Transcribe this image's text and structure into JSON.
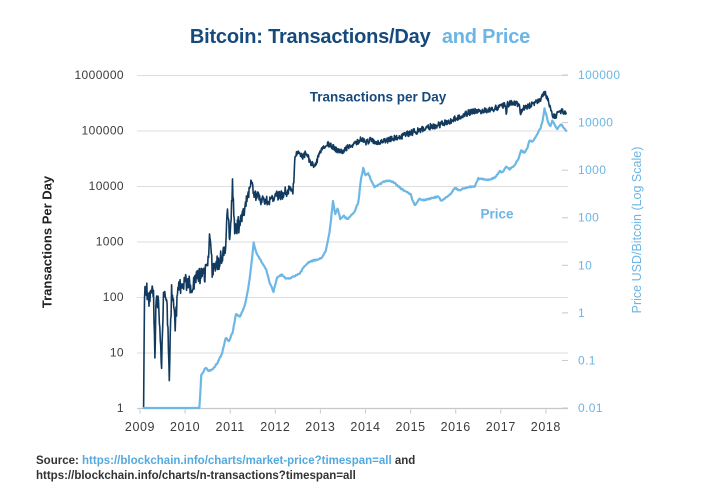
{
  "title": {
    "part1": "Bitcoin: Transactions/Day",
    "part2": "and Price"
  },
  "annotations": {
    "transactions": "Transactions per Day",
    "price": "Price"
  },
  "source": {
    "prefix": "Source:",
    "link1": "https://blockchain.info/charts/market-price?timespan=all",
    "conjunction": "and",
    "line2": "https://blockchain.info/charts/n-transactions?timespan=all"
  },
  "colors": {
    "navy_text": "#174a7c",
    "blue_text": "#6cb5e4",
    "grid": "#dedede",
    "axis": "#c8c8c8",
    "transactions_line": "#123a5e",
    "price_line": "#6db7e6"
  },
  "chart_data": {
    "type": "line",
    "title": "Bitcoin: Transactions/Day and Price",
    "grid": "horizontal-left-decades",
    "legend": "inline-annotations",
    "x_axis": {
      "ticks": [
        2009,
        2010,
        2011,
        2012,
        2013,
        2014,
        2015,
        2016,
        2017,
        2018
      ],
      "range": [
        2008.9,
        2018.55
      ]
    },
    "y_left": {
      "label": "Transactions Per Day",
      "scale": "log",
      "range": [
        1,
        1000000
      ],
      "ticks": [
        1,
        10,
        100,
        1000,
        10000,
        100000,
        1000000
      ]
    },
    "y_right": {
      "label": "Price USD/Bitcoin (Log Scale)",
      "scale": "log",
      "range": [
        0.01,
        100000
      ],
      "ticks": [
        0.01,
        0.1,
        1,
        10,
        100,
        1000,
        10000,
        100000
      ]
    },
    "series": [
      {
        "id": "transactions",
        "name": "Transactions per Day",
        "axis": "left",
        "color": "#123a5e",
        "width": 1.6,
        "render": {
          "seed": 9,
          "step": 0.01,
          "noise": [
            [
              2011.2,
              0.16
            ],
            [
              2012.44,
              0.1
            ],
            [
              9999,
              0.055
            ]
          ]
        },
        "points": [
          [
            2009.08,
            1
          ],
          [
            2009.1,
            120
          ],
          [
            2009.15,
            130
          ],
          [
            2009.2,
            80
          ],
          [
            2009.25,
            130
          ],
          [
            2009.3,
            100
          ],
          [
            2009.33,
            9
          ],
          [
            2009.36,
            110
          ],
          [
            2009.42,
            70
          ],
          [
            2009.48,
            5
          ],
          [
            2009.52,
            120
          ],
          [
            2009.6,
            75
          ],
          [
            2009.65,
            3
          ],
          [
            2009.7,
            140
          ],
          [
            2009.78,
            30
          ],
          [
            2009.85,
            150
          ],
          [
            2009.95,
            170
          ],
          [
            2010.05,
            190
          ],
          [
            2010.15,
            160
          ],
          [
            2010.3,
            230
          ],
          [
            2010.42,
            260
          ],
          [
            2010.5,
            300
          ],
          [
            2010.55,
            1500
          ],
          [
            2010.6,
            320
          ],
          [
            2010.68,
            380
          ],
          [
            2010.78,
            480
          ],
          [
            2010.88,
            600
          ],
          [
            2010.94,
            3600
          ],
          [
            2011.0,
            1000
          ],
          [
            2011.05,
            12500
          ],
          [
            2011.1,
            1400
          ],
          [
            2011.2,
            2100
          ],
          [
            2011.3,
            3400
          ],
          [
            2011.4,
            7000
          ],
          [
            2011.46,
            11500
          ],
          [
            2011.52,
            8000
          ],
          [
            2011.6,
            6300
          ],
          [
            2011.7,
            5600
          ],
          [
            2011.8,
            5300
          ],
          [
            2011.9,
            5800
          ],
          [
            2012.0,
            6300
          ],
          [
            2012.1,
            6800
          ],
          [
            2012.2,
            7500
          ],
          [
            2012.3,
            8200
          ],
          [
            2012.4,
            9000
          ],
          [
            2012.44,
            34000
          ],
          [
            2012.52,
            42000
          ],
          [
            2012.6,
            33000
          ],
          [
            2012.68,
            39000
          ],
          [
            2012.78,
            27000
          ],
          [
            2012.88,
            22000
          ],
          [
            2012.95,
            32000
          ],
          [
            2013.05,
            48000
          ],
          [
            2013.15,
            57000
          ],
          [
            2013.25,
            52000
          ],
          [
            2013.35,
            46000
          ],
          [
            2013.45,
            41000
          ],
          [
            2013.55,
            46000
          ],
          [
            2013.65,
            51000
          ],
          [
            2013.75,
            56000
          ],
          [
            2013.85,
            64000
          ],
          [
            2013.92,
            71000
          ],
          [
            2014.0,
            62000
          ],
          [
            2014.1,
            66000
          ],
          [
            2014.2,
            61000
          ],
          [
            2014.35,
            63000
          ],
          [
            2014.5,
            67000
          ],
          [
            2014.65,
            73000
          ],
          [
            2014.8,
            79000
          ],
          [
            2014.95,
            87000
          ],
          [
            2015.1,
            96000
          ],
          [
            2015.25,
            105000
          ],
          [
            2015.4,
            115000
          ],
          [
            2015.55,
            122000
          ],
          [
            2015.7,
            131000
          ],
          [
            2015.85,
            143000
          ],
          [
            2016.0,
            165000
          ],
          [
            2016.15,
            190000
          ],
          [
            2016.3,
            212000
          ],
          [
            2016.45,
            222000
          ],
          [
            2016.6,
            227000
          ],
          [
            2016.75,
            237000
          ],
          [
            2016.9,
            258000
          ],
          [
            2017.05,
            285000
          ],
          [
            2017.1,
            290000
          ],
          [
            2017.12,
            195000
          ],
          [
            2017.15,
            295000
          ],
          [
            2017.2,
            305000
          ],
          [
            2017.3,
            320000
          ],
          [
            2017.4,
            285000
          ],
          [
            2017.44,
            205000
          ],
          [
            2017.5,
            265000
          ],
          [
            2017.6,
            272000
          ],
          [
            2017.7,
            298000
          ],
          [
            2017.8,
            330000
          ],
          [
            2017.9,
            375000
          ],
          [
            2017.97,
            490000
          ],
          [
            2018.02,
            390000
          ],
          [
            2018.08,
            300000
          ],
          [
            2018.13,
            195000
          ],
          [
            2018.2,
            178000
          ],
          [
            2018.27,
            205000
          ],
          [
            2018.33,
            228000
          ],
          [
            2018.4,
            215000
          ],
          [
            2018.45,
            205000
          ]
        ]
      },
      {
        "id": "price",
        "name": "Price",
        "axis": "right",
        "color": "#6db7e6",
        "width": 2.2,
        "render": {
          "seed": 4,
          "step": 0.015,
          "noise": [
            [
              2010.3,
              0
            ],
            [
              9999,
              0.013
            ]
          ]
        },
        "points": [
          [
            2009.08,
            0.005
          ],
          [
            2010.3,
            0.005
          ],
          [
            2010.36,
            0.05
          ],
          [
            2010.45,
            0.07
          ],
          [
            2010.52,
            0.06
          ],
          [
            2010.62,
            0.065
          ],
          [
            2010.72,
            0.09
          ],
          [
            2010.82,
            0.14
          ],
          [
            2010.9,
            0.3
          ],
          [
            2010.97,
            0.25
          ],
          [
            2011.05,
            0.38
          ],
          [
            2011.13,
            0.95
          ],
          [
            2011.22,
            0.82
          ],
          [
            2011.32,
            1.4
          ],
          [
            2011.4,
            3.2
          ],
          [
            2011.46,
            8.5
          ],
          [
            2011.52,
            30
          ],
          [
            2011.58,
            18
          ],
          [
            2011.65,
            14
          ],
          [
            2011.72,
            11
          ],
          [
            2011.8,
            8
          ],
          [
            2011.88,
            4.2
          ],
          [
            2011.96,
            2.8
          ],
          [
            2012.04,
            5.4
          ],
          [
            2012.14,
            6.3
          ],
          [
            2012.24,
            5.2
          ],
          [
            2012.34,
            5.4
          ],
          [
            2012.44,
            6
          ],
          [
            2012.54,
            6.6
          ],
          [
            2012.64,
            9.5
          ],
          [
            2012.74,
            11.5
          ],
          [
            2012.84,
            12.6
          ],
          [
            2012.94,
            13.2
          ],
          [
            2013.04,
            14.5
          ],
          [
            2013.12,
            20
          ],
          [
            2013.2,
            47
          ],
          [
            2013.28,
            220
          ],
          [
            2013.33,
            120
          ],
          [
            2013.38,
            160
          ],
          [
            2013.44,
            95
          ],
          [
            2013.52,
            108
          ],
          [
            2013.6,
            92
          ],
          [
            2013.68,
            110
          ],
          [
            2013.76,
            135
          ],
          [
            2013.84,
            210
          ],
          [
            2013.9,
            640
          ],
          [
            2013.95,
            1120
          ],
          [
            2014.0,
            780
          ],
          [
            2014.06,
            860
          ],
          [
            2014.12,
            630
          ],
          [
            2014.2,
            450
          ],
          [
            2014.3,
            490
          ],
          [
            2014.4,
            570
          ],
          [
            2014.5,
            600
          ],
          [
            2014.6,
            580
          ],
          [
            2014.7,
            480
          ],
          [
            2014.8,
            400
          ],
          [
            2014.9,
            350
          ],
          [
            2015.0,
            310
          ],
          [
            2015.05,
            220
          ],
          [
            2015.1,
            180
          ],
          [
            2015.18,
            245
          ],
          [
            2015.3,
            235
          ],
          [
            2015.4,
            247
          ],
          [
            2015.5,
            262
          ],
          [
            2015.6,
            280
          ],
          [
            2015.68,
            232
          ],
          [
            2015.8,
            268
          ],
          [
            2015.9,
            330
          ],
          [
            2015.98,
            430
          ],
          [
            2016.08,
            375
          ],
          [
            2016.18,
            415
          ],
          [
            2016.3,
            445
          ],
          [
            2016.42,
            455
          ],
          [
            2016.5,
            670
          ],
          [
            2016.58,
            655
          ],
          [
            2016.68,
            615
          ],
          [
            2016.78,
            640
          ],
          [
            2016.88,
            715
          ],
          [
            2016.98,
            955
          ],
          [
            2017.04,
            890
          ],
          [
            2017.12,
            1190
          ],
          [
            2017.2,
            1050
          ],
          [
            2017.3,
            1270
          ],
          [
            2017.38,
            1650
          ],
          [
            2017.45,
            2550
          ],
          [
            2017.52,
            2350
          ],
          [
            2017.58,
            2750
          ],
          [
            2017.64,
            4300
          ],
          [
            2017.7,
            3900
          ],
          [
            2017.76,
            4750
          ],
          [
            2017.82,
            6100
          ],
          [
            2017.88,
            7600
          ],
          [
            2017.93,
            11000
          ],
          [
            2017.97,
            19300
          ],
          [
            2018.01,
            14200
          ],
          [
            2018.05,
            10200
          ],
          [
            2018.1,
            8300
          ],
          [
            2018.14,
            11100
          ],
          [
            2018.2,
            8900
          ],
          [
            2018.25,
            7200
          ],
          [
            2018.3,
            8400
          ],
          [
            2018.35,
            9100
          ],
          [
            2018.4,
            7600
          ],
          [
            2018.45,
            6700
          ]
        ]
      }
    ]
  }
}
